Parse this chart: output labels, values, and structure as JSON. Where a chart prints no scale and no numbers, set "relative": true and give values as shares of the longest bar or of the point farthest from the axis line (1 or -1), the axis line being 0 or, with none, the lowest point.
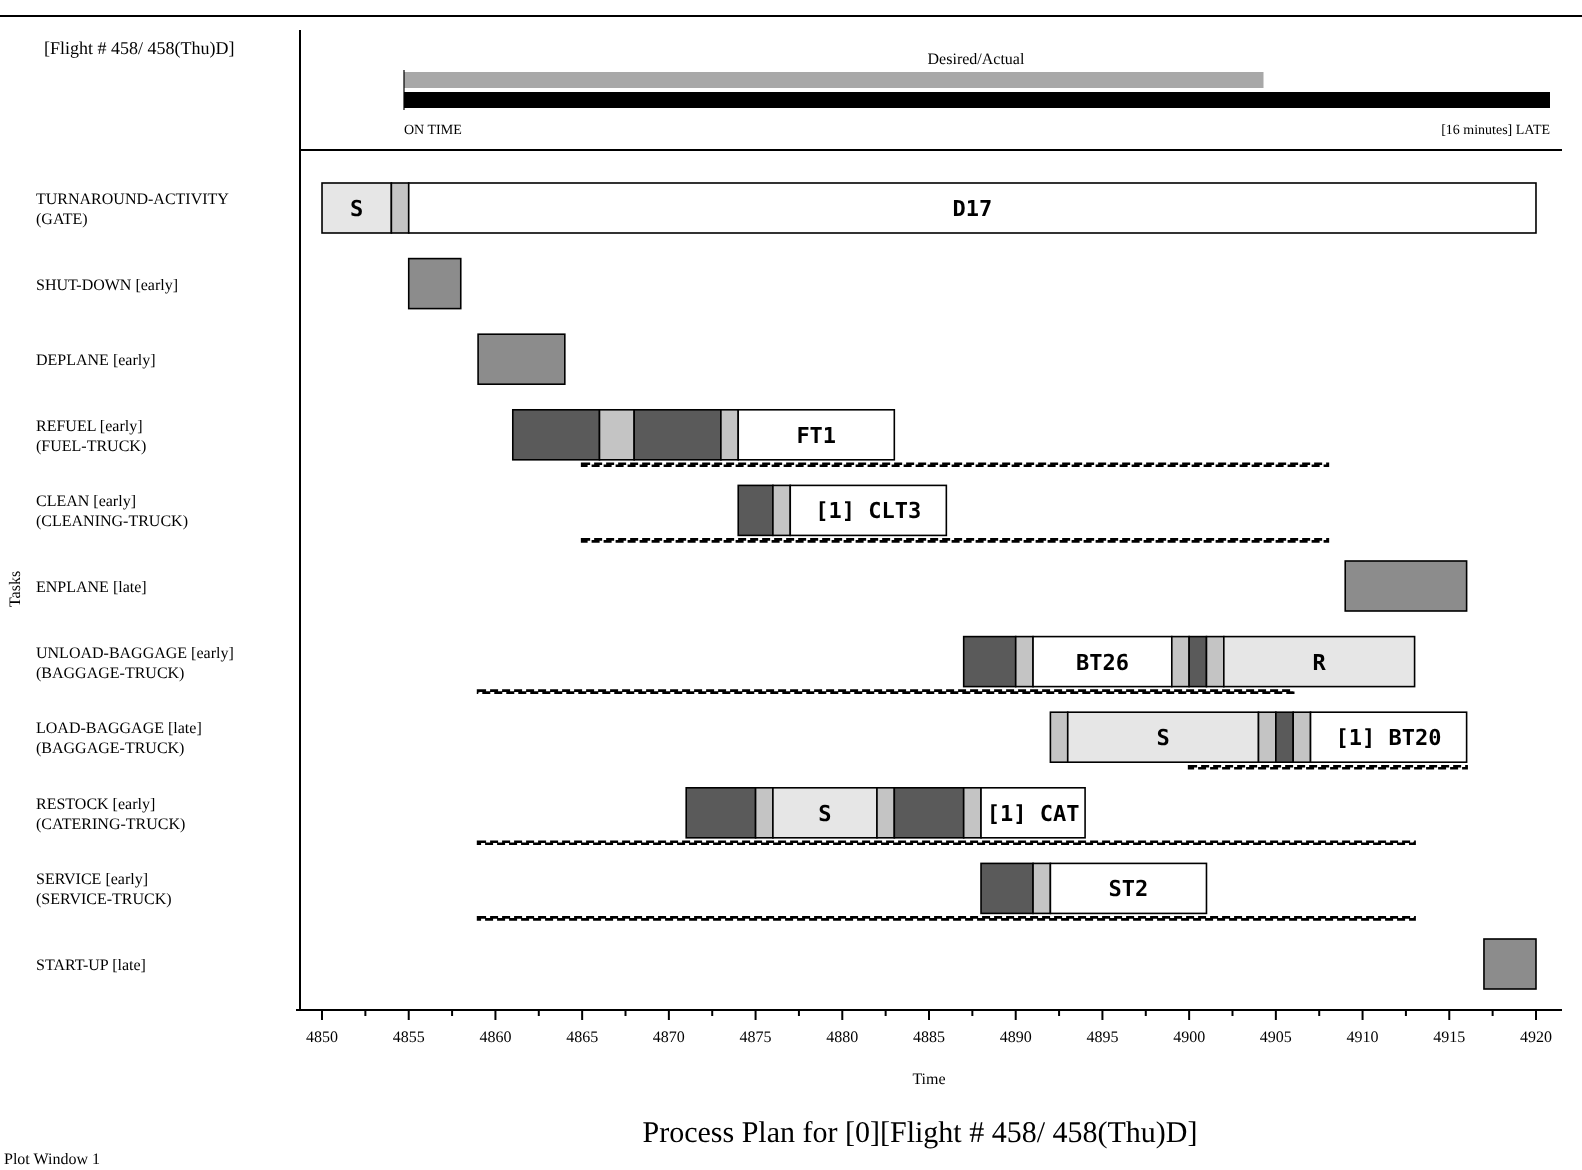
{
  "chart_data": [
    {
      "type": "bar",
      "orientation": "horizontal",
      "relative": true,
      "title": "Desired/Actual",
      "categories": [
        null,
        null
      ],
      "values": [
        0.75,
        1
      ],
      "colors": [
        "#a8a8a8",
        "#000000"
      ],
      "annotations": [
        "[Flight # 458/ 458(Thu)D]",
        "ON TIME",
        "[16 minutes] LATE"
      ]
    },
    {
      "type": "bar",
      "orientation": "horizontal",
      "title": "Process Plan for [0][Flight # 458/ 458(Thu)D]",
      "xlabel": "Time",
      "ylabel": "Tasks",
      "categories": [
        "TURNAROUND-ACTIVITY\n(GATE)",
        "SHUT-DOWN [early]",
        "DEPLANE [early]",
        "REFUEL [early]\n(FUEL-TRUCK)",
        "CLEAN [early]\n(CLEANING-TRUCK)",
        "ENPLANE [late]",
        "UNLOAD-BAGGAGE [early]\n(BAGGAGE-TRUCK)",
        "LOAD-BAGGAGE [late]\n(BAGGAGE-TRUCK)",
        "RESTOCK [early]\n(CATERING-TRUCK)",
        "SERVICE [early]\n(SERVICE-TRUCK)",
        "START-UP [late]"
      ],
      "series": [
        {
          "base": [
            4850,
            4855,
            4859,
            4861,
            4874,
            4909,
            4887,
            4892,
            4871,
            4888,
            4917
          ],
          "values": [
            4,
            3,
            5,
            5,
            2,
            7,
            3,
            1,
            4,
            3,
            3
          ],
          "colors": [
            "#e6e6e6",
            "#8c8c8c",
            "#8c8c8c",
            "#5a5a5a",
            "#5a5a5a",
            "#8c8c8c",
            "#5a5a5a",
            "#c4c4c4",
            "#5a5a5a",
            "#5a5a5a",
            "#8c8c8c"
          ]
        },
        {
          "base": [
            4854,
            null,
            null,
            4866,
            4876,
            null,
            4890,
            4893,
            4875,
            4891,
            null
          ],
          "values": [
            1,
            null,
            null,
            2,
            1,
            null,
            1,
            11,
            1,
            1,
            null
          ],
          "colors": [
            "#c4c4c4",
            null,
            null,
            "#c4c4c4",
            "#c4c4c4",
            null,
            "#c4c4c4",
            "#e6e6e6",
            "#c4c4c4",
            "#c4c4c4",
            null
          ]
        },
        {
          "base": [
            4855,
            null,
            null,
            4868,
            4877,
            null,
            4891,
            4904,
            4876,
            4892,
            null
          ],
          "values": [
            65,
            null,
            null,
            5,
            9,
            null,
            8,
            1,
            6,
            9,
            null
          ],
          "colors": [
            "#ffffff",
            null,
            null,
            "#5a5a5a",
            "#ffffff",
            null,
            "#ffffff",
            "#c4c4c4",
            "#e6e6e6",
            "#ffffff",
            null
          ]
        },
        {
          "base": [
            null,
            null,
            null,
            4873,
            null,
            null,
            4899,
            4905,
            4882,
            null,
            null
          ],
          "values": [
            null,
            null,
            null,
            1,
            null,
            null,
            1,
            1,
            1,
            null,
            null
          ],
          "colors": [
            null,
            null,
            null,
            "#c4c4c4",
            null,
            null,
            "#c4c4c4",
            "#5a5a5a",
            "#c4c4c4",
            null,
            null
          ]
        },
        {
          "base": [
            null,
            null,
            null,
            4874,
            null,
            null,
            4900,
            4906,
            4883,
            null,
            null
          ],
          "values": [
            null,
            null,
            null,
            9,
            null,
            null,
            1,
            1,
            4,
            null,
            null
          ],
          "colors": [
            null,
            null,
            null,
            "#ffffff",
            null,
            null,
            "#5a5a5a",
            "#c4c4c4",
            "#5a5a5a",
            null,
            null
          ]
        },
        {
          "base": [
            null,
            null,
            null,
            null,
            null,
            null,
            4901,
            4907,
            4887,
            null,
            null
          ],
          "values": [
            null,
            null,
            null,
            null,
            null,
            null,
            1,
            9,
            1,
            null,
            null
          ],
          "colors": [
            null,
            null,
            null,
            null,
            null,
            null,
            "#c4c4c4",
            "#ffffff",
            "#c4c4c4",
            null,
            null
          ]
        },
        {
          "base": [
            null,
            null,
            null,
            null,
            null,
            null,
            4902,
            null,
            4888,
            null,
            null
          ],
          "values": [
            null,
            null,
            null,
            null,
            null,
            null,
            11,
            null,
            6,
            null,
            null
          ],
          "colors": [
            null,
            null,
            null,
            null,
            null,
            null,
            "#e6e6e6",
            null,
            "#ffffff",
            null,
            null
          ]
        },
        {
          "base": [
            null,
            null,
            null,
            4865,
            4865,
            null,
            4859,
            4900,
            4859,
            4859,
            null
          ],
          "values": [
            null,
            null,
            null,
            43,
            43,
            null,
            47,
            16,
            54,
            54,
            null
          ],
          "color": "#000000",
          "line_style": "dashed"
        }
      ],
      "xlim": [
        4848.5,
        4921.5
      ],
      "xticks": [
        4850,
        {
          "value": 4852.5,
          "label": null
        },
        4855,
        {
          "value": 4857.5,
          "label": null
        },
        4860,
        {
          "value": 4862.5,
          "label": null
        },
        4865,
        {
          "value": 4867.5,
          "label": null
        },
        4870,
        {
          "value": 4872.5,
          "label": null
        },
        4875,
        {
          "value": 4877.5,
          "label": null
        },
        4880,
        {
          "value": 4882.5,
          "label": null
        },
        4885,
        {
          "value": 4887.5,
          "label": null
        },
        4890,
        {
          "value": 4892.5,
          "label": null
        },
        4895,
        {
          "value": 4897.5,
          "label": null
        },
        4900,
        {
          "value": 4902.5,
          "label": null
        },
        4905,
        {
          "value": 4907.5,
          "label": null
        },
        4910,
        {
          "value": 4912.5,
          "label": null
        },
        4915,
        {
          "value": 4917.5,
          "label": null
        },
        4920
      ],
      "annotations": [
        "Plot Window 1",
        {
          "text": "S",
          "x": 4852,
          "y": "TURNAROUND-ACTIVITY\n(GATE)"
        },
        {
          "text": "D17",
          "x": 4887.5,
          "y": "TURNAROUND-ACTIVITY\n(GATE)"
        },
        {
          "text": "FT1",
          "x": 4878.5,
          "y": "REFUEL [early]\n(FUEL-TRUCK)"
        },
        {
          "text": "[1] CLT3",
          "x": 4881.5,
          "y": "CLEAN [early]\n(CLEANING-TRUCK)"
        },
        {
          "text": "BT26",
          "x": 4895,
          "y": "UNLOAD-BAGGAGE [early]\n(BAGGAGE-TRUCK)"
        },
        {
          "text": "R",
          "x": 4907.5,
          "y": "UNLOAD-BAGGAGE [early]\n(BAGGAGE-TRUCK)"
        },
        {
          "text": "S",
          "x": 4898.5,
          "y": "LOAD-BAGGAGE [late]\n(BAGGAGE-TRUCK)"
        },
        {
          "text": "[1] BT20",
          "x": 4911.5,
          "y": "LOAD-BAGGAGE [late]\n(BAGGAGE-TRUCK)"
        },
        {
          "text": "S",
          "x": 4879,
          "y": "RESTOCK [early]\n(CATERING-TRUCK)"
        },
        {
          "text": "[1] CAT",
          "x": 4891,
          "y": "RESTOCK [early]\n(CATERING-TRUCK)"
        },
        {
          "text": "ST2",
          "x": 4896.5,
          "y": "SERVICE [early]\n(SERVICE-TRUCK)"
        }
      ]
    }
  ]
}
